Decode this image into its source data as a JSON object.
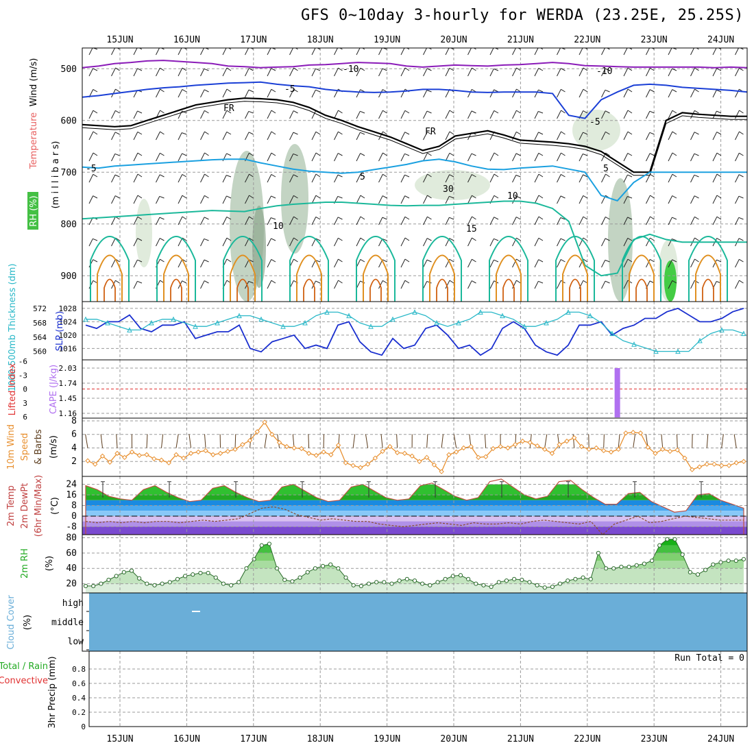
{
  "title": "GFS 0~10day 3-hourly for WERDA (23.25E, 25.25S)",
  "colors": {
    "purple": "#8a1ab8",
    "blue": "#1a3fd6",
    "cyan": "#1aa0e0",
    "teal": "#1ab89a",
    "orange": "#e09020",
    "darkorange": "#d06010",
    "slp": "#1a2fcf",
    "thick": "#2ab8c8",
    "cape": "#b070f0",
    "wind": "#e89030",
    "rh": "#22c022",
    "cloud": "#6aaed8",
    "li": "#e03030"
  },
  "chart_data": {
    "type": "meteogram",
    "x_labels": [
      "15JUN",
      "16JUN",
      "17JUN",
      "18JUN",
      "19JUN",
      "20JUN",
      "21JUN",
      "22JUN",
      "23JUN",
      "24JUN"
    ],
    "panels": {
      "upper": {
        "ylabel_parts": [
          "Wind (m/s)",
          "Temperature (°C)",
          "RH (%)"
        ],
        "ylabel_center": "(m i l l i b a r s)",
        "yticks": [
          "500",
          "600",
          "700",
          "800",
          "900"
        ],
        "ylim": [
          460,
          950
        ],
        "contour_labels": {
          "minus10_a": "-10",
          "minus10_b": "-10",
          "minus5_a": "-5",
          "minus5_b": "-5",
          "fr_a": "FR",
          "fr_b": "FR",
          "cyan_a": "-5",
          "cyan_b": "5",
          "cyan_c": "5",
          "teal_a": "10",
          "teal_b": "15",
          "teal_c": "10",
          "rh": "30"
        },
        "isotherm_minus10_mb": [
          498,
          495,
          490,
          488,
          485,
          484,
          486,
          488,
          490,
          495,
          496,
          498,
          497,
          496,
          493,
          492,
          490,
          488,
          489,
          490,
          495,
          497,
          495,
          493,
          494,
          495,
          493,
          492,
          490,
          488,
          490,
          494,
          495,
          496,
          497,
          497,
          497,
          497,
          497,
          498,
          497,
          498
        ],
        "isotherm_minus5_mb": [
          555,
          552,
          548,
          544,
          540,
          537,
          535,
          532,
          530,
          528,
          527,
          526,
          530,
          533,
          535,
          540,
          543,
          545,
          546,
          545,
          543,
          540,
          540,
          542,
          545,
          546,
          545,
          545,
          545,
          548,
          590,
          596,
          560,
          545,
          532,
          530,
          532,
          536,
          538,
          540,
          542,
          545
        ],
        "freezing_level_mb": [
          608,
          610,
          612,
          610,
          600,
          590,
          580,
          570,
          565,
          560,
          557,
          558,
          560,
          565,
          575,
          590,
          600,
          612,
          622,
          632,
          645,
          658,
          650,
          630,
          625,
          620,
          628,
          638,
          640,
          642,
          645,
          650,
          660,
          680,
          700,
          700,
          600,
          585,
          588,
          590,
          592,
          592
        ],
        "cyan_minus5_mb": [
          690,
          692,
          688,
          686,
          684,
          682,
          680,
          678,
          676,
          675,
          675,
          682,
          688,
          694,
          698,
          700,
          702,
          700,
          695,
          690,
          685,
          678,
          675,
          680,
          688,
          694,
          695,
          692,
          690,
          688,
          694,
          700,
          745,
          755,
          720,
          700,
          700,
          700,
          700,
          700,
          700,
          700
        ],
        "teal_10_mb": [
          790,
          788,
          786,
          784,
          782,
          780,
          778,
          776,
          774,
          775,
          776,
          770,
          765,
          762,
          760,
          758,
          758,
          760,
          762,
          764,
          765,
          764,
          764,
          762,
          760,
          758,
          756,
          756,
          760,
          770,
          795,
          880,
          900,
          895,
          830,
          820,
          830,
          835,
          835,
          835,
          835,
          835
        ]
      },
      "pressure": {
        "ylabel_right": "SLP (mb)",
        "ylabel_left": "1000-500mb Thickness (dm)",
        "slp_ticks": [
          "1016",
          "1020",
          "1024",
          "1028"
        ],
        "thick_ticks": [
          "560",
          "564",
          "568",
          "572"
        ],
        "slp_ylim": [
          1013,
          1029
        ],
        "thick_ylim": [
          558,
          573
        ],
        "slp_mb": [
          1023,
          1022,
          1024,
          1024,
          1026,
          1022,
          1021,
          1023,
          1023,
          1024,
          1019,
          1020,
          1021,
          1021,
          1023,
          1016,
          1015,
          1018,
          1019,
          1020,
          1016,
          1017,
          1016,
          1023,
          1024,
          1018,
          1015,
          1014,
          1019,
          1016,
          1017,
          1022,
          1023,
          1020,
          1016,
          1017,
          1014,
          1016,
          1022,
          1024,
          1022,
          1017,
          1015,
          1014,
          1017,
          1023,
          1023,
          1024,
          1020,
          1022,
          1023,
          1025,
          1025,
          1027,
          1028,
          1026,
          1024,
          1024,
          1025,
          1027,
          1028
        ],
        "thickness_dm": [
          569,
          569,
          568,
          567,
          566,
          566,
          568,
          569,
          569,
          568,
          567,
          567,
          568,
          569,
          570,
          570,
          569,
          568,
          567,
          567,
          568,
          570,
          571,
          571,
          570,
          568,
          567,
          567,
          569,
          570,
          571,
          570,
          568,
          567,
          568,
          569,
          571,
          571,
          570,
          569,
          567,
          567,
          568,
          569,
          571,
          571,
          570,
          568,
          565,
          563,
          562,
          561,
          560,
          560,
          560,
          560,
          563,
          565,
          566,
          566,
          565
        ]
      },
      "cape": {
        "ylabel_left": "Lifted Index",
        "ylabel_right": "CAPE (J/kg)",
        "li_ticks": [
          "-6",
          "-3",
          "0",
          "3",
          "6"
        ],
        "cape_ticks": [
          "1.16",
          "1.45",
          "1.74",
          "2.03"
        ],
        "cape_bar_value": 2.03,
        "cape_bar_day": 7.45
      },
      "wind10m": {
        "ylabel": "10m Wind Speed & Barbs (m/s)",
        "yticks": [
          "2",
          "4",
          "6",
          "8"
        ],
        "ylim": [
          0,
          8.2
        ],
        "speed_ms": [
          2.1,
          1.6,
          2.8,
          1.9,
          3.2,
          2.6,
          3.4,
          2.9,
          3.0,
          2.4,
          2.2,
          1.8,
          3.0,
          2.5,
          3.2,
          3.4,
          3.6,
          3.0,
          3.2,
          3.5,
          3.8,
          4.5,
          5.1,
          6.4,
          7.8,
          6.0,
          4.8,
          4.2,
          4.0,
          3.9,
          3.2,
          2.9,
          3.4,
          3.0,
          4.4,
          1.8,
          1.4,
          1.1,
          1.6,
          2.5,
          3.5,
          4.2,
          3.3,
          3.2,
          2.8,
          2.0,
          2.6,
          1.5,
          0.5,
          3.0,
          3.4,
          4.0,
          4.2,
          2.6,
          2.7,
          3.9,
          4.2,
          4.0,
          4.5,
          5.0,
          4.8,
          4.3,
          3.8,
          3.2,
          4.5,
          5.0,
          5.5,
          4.2,
          3.8,
          4.0,
          3.6,
          3.4,
          3.8,
          6.2,
          6.3,
          6.2,
          4.1,
          3.2,
          3.8,
          3.5,
          3.7,
          2.5,
          0.8,
          1.2,
          1.6,
          1.6,
          1.4,
          1.4,
          1.8,
          2.0
        ]
      },
      "temp": {
        "ylabel": "2m Temp 2m DewPt (6hr Min/Max) (°C)",
        "yticks": [
          "24",
          "16",
          "8",
          "0",
          "-8"
        ],
        "ylim": [
          -14,
          30
        ],
        "temp_c": [
          23,
          20,
          15,
          13,
          12,
          20,
          23,
          18,
          14,
          11,
          12,
          21,
          23,
          18,
          14,
          11,
          12,
          22,
          24,
          19,
          14,
          11,
          12,
          22,
          24,
          19,
          14,
          12,
          13,
          23,
          25,
          20,
          15,
          12,
          14,
          26,
          28,
          22,
          16,
          13,
          15,
          26,
          27,
          20,
          14,
          9,
          9,
          17,
          18,
          11,
          7,
          3,
          4,
          16,
          17,
          12,
          9,
          6
        ],
        "dewpt_c": [
          -4,
          -5,
          -4,
          -5,
          -4,
          -5,
          -4,
          -4,
          -5,
          -4,
          -3,
          -4,
          -3,
          -2,
          2,
          6,
          7,
          5,
          1,
          -1,
          -3,
          -2,
          -3,
          -4,
          -4,
          -6,
          -7,
          -8,
          -7,
          -6,
          -5,
          -6,
          -7,
          -5,
          -6,
          -6,
          -5,
          -6,
          -4,
          -3,
          -4,
          -5,
          -6,
          -4,
          -14,
          -6,
          -3,
          0,
          -5,
          -4,
          -2,
          0,
          -1,
          -2,
          -3,
          -3,
          -3
        ]
      },
      "rh2m": {
        "ylabel": "2m RH (%)",
        "yticks": [
          "20",
          "40",
          "60",
          "80"
        ],
        "ylim": [
          8,
          84
        ],
        "rh_pct": [
          17,
          17,
          20,
          25,
          30,
          35,
          37,
          27,
          20,
          18,
          20,
          22,
          26,
          30,
          32,
          34,
          34,
          28,
          20,
          18,
          22,
          40,
          52,
          70,
          72,
          40,
          25,
          23,
          28,
          35,
          40,
          43,
          45,
          40,
          28,
          18,
          17,
          20,
          22,
          22,
          20,
          24,
          26,
          24,
          20,
          18,
          22,
          26,
          30,
          31,
          26,
          20,
          18,
          16,
          22,
          24,
          26,
          25,
          22,
          18,
          15,
          16,
          20,
          24,
          26,
          28,
          26,
          60,
          40,
          40,
          42,
          42,
          44,
          46,
          50,
          70,
          78,
          78,
          58,
          35,
          32,
          38,
          45,
          48,
          50,
          50,
          52
        ]
      },
      "cloud": {
        "ylabel": "Cloud Cover (%)",
        "levels": [
          "high",
          "middle",
          "low"
        ]
      },
      "precip": {
        "ylabel": "3hr Precip (mm)",
        "legend_a": "Total / Rain",
        "legend_b": "Convective",
        "yticks": [
          "0",
          "0.2",
          "0.4",
          "0.6",
          "0.8"
        ],
        "ylim": [
          0,
          1
        ],
        "values_mm": [],
        "run_total": "Run Total = 0"
      }
    }
  }
}
